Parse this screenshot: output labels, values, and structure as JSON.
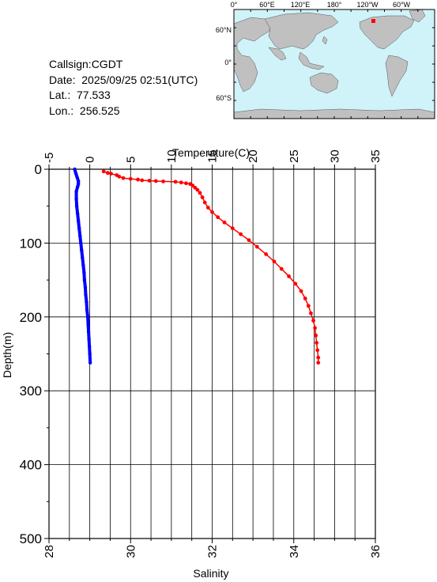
{
  "info": {
    "callsign": "Callsign:CGDT",
    "date": "Date:  2025/09/25 02:51(UTC)",
    "lat": "Lat.:  77.533",
    "lon": "Lon.:  256.525"
  },
  "map": {
    "lon_labels": [
      "0°",
      "60°E",
      "120°E",
      "180°",
      "120°W",
      "60°W"
    ],
    "lat_labels": [
      "60°N",
      "0°",
      "60°S"
    ],
    "ocean_color": "#cff3f8",
    "land_color": "#c0c0c0",
    "station_color": "#ff0000"
  },
  "chart_data": {
    "type": "scatter",
    "top_axis_label": "Temperature(C)",
    "bottom_axis_label": "Salinity",
    "y_axis_label": "Depth(m)",
    "temperature_ticks": [
      "-5",
      "0",
      "5",
      "10",
      "15",
      "20",
      "25",
      "30",
      "35"
    ],
    "salinity_ticks": [
      "28",
      "30",
      "32",
      "34",
      "36"
    ],
    "depth_ticks": [
      "0",
      "100",
      "200",
      "300",
      "400",
      "500"
    ],
    "temperature_range": [
      -5,
      35
    ],
    "salinity_range": [
      28,
      36
    ],
    "depth_range": [
      0,
      500
    ],
    "series": [
      {
        "variable": "temperature",
        "color": "#ff0000",
        "points": [
          [
            1.7,
            3
          ],
          [
            2.2,
            5
          ],
          [
            2.6,
            6
          ],
          [
            3.3,
            8
          ],
          [
            3.6,
            10
          ],
          [
            4.1,
            12
          ],
          [
            5.0,
            13
          ],
          [
            5.9,
            14
          ],
          [
            6.4,
            15
          ],
          [
            7.3,
            15.5
          ],
          [
            8.1,
            16
          ],
          [
            9.0,
            16.5
          ],
          [
            10.5,
            17
          ],
          [
            11.2,
            18
          ],
          [
            11.8,
            19
          ],
          [
            12.3,
            20
          ],
          [
            12.6,
            22
          ],
          [
            12.9,
            25
          ],
          [
            13.2,
            28
          ],
          [
            13.5,
            32
          ],
          [
            13.8,
            38
          ],
          [
            14.1,
            45
          ],
          [
            14.5,
            52
          ],
          [
            15.0,
            58
          ],
          [
            15.7,
            65
          ],
          [
            16.5,
            72
          ],
          [
            17.5,
            80
          ],
          [
            18.5,
            88
          ],
          [
            19.5,
            96
          ],
          [
            20.5,
            105
          ],
          [
            21.6,
            115
          ],
          [
            22.6,
            125
          ],
          [
            23.5,
            135
          ],
          [
            24.4,
            145
          ],
          [
            25.2,
            155
          ],
          [
            25.9,
            165
          ],
          [
            26.4,
            175
          ],
          [
            26.8,
            185
          ],
          [
            27.1,
            195
          ],
          [
            27.4,
            205
          ],
          [
            27.6,
            215
          ],
          [
            27.7,
            225
          ],
          [
            27.8,
            235
          ],
          [
            27.9,
            245
          ],
          [
            28.0,
            255
          ],
          [
            28.0,
            262
          ]
        ]
      },
      {
        "variable": "salinity",
        "color": "#0000ff",
        "points": [
          [
            28.63,
            0
          ],
          [
            28.66,
            6
          ],
          [
            28.69,
            11
          ],
          [
            28.72,
            16
          ],
          [
            28.72,
            20
          ],
          [
            28.7,
            24
          ],
          [
            28.67,
            30
          ],
          [
            28.67,
            40
          ],
          [
            28.68,
            50
          ],
          [
            28.7,
            60
          ],
          [
            28.72,
            70
          ],
          [
            28.74,
            80
          ],
          [
            28.76,
            90
          ],
          [
            28.78,
            100
          ],
          [
            28.8,
            110
          ],
          [
            28.82,
            120
          ],
          [
            28.84,
            130
          ],
          [
            28.86,
            140
          ],
          [
            28.87,
            150
          ],
          [
            28.89,
            160
          ],
          [
            28.9,
            170
          ],
          [
            28.92,
            180
          ],
          [
            28.93,
            190
          ],
          [
            28.95,
            200
          ],
          [
            28.96,
            210
          ],
          [
            28.97,
            220
          ],
          [
            28.98,
            230
          ],
          [
            28.99,
            240
          ],
          [
            29.0,
            250
          ],
          [
            29.01,
            262
          ]
        ]
      }
    ]
  }
}
